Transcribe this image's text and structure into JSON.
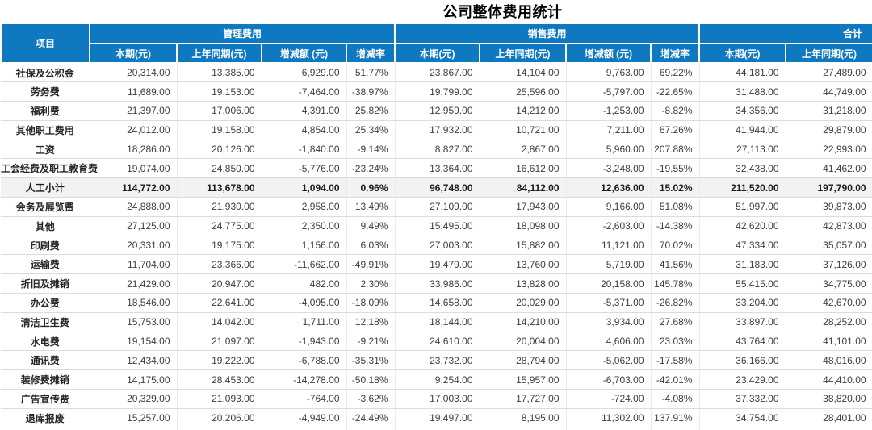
{
  "chart_data": {
    "type": "table",
    "title": "公司整体费用统计",
    "item_header": "项目",
    "groups": [
      {
        "label": "管理费用",
        "cols": [
          "本期(元)",
          "上年同期(元)",
          "增减额 (元)",
          "增减率"
        ]
      },
      {
        "label": "销售费用",
        "cols": [
          "本期(元)",
          "上年同期(元)",
          "增减额 (元)",
          "增减率"
        ]
      },
      {
        "label": "合计",
        "cols": [
          "本期(元)",
          "上年同期(元)"
        ]
      }
    ],
    "rows": [
      {
        "item": "社保及公积金",
        "subtotal": false,
        "values": [
          "20,314.00",
          "13,385.00",
          "6,929.00",
          "51.77%",
          "23,867.00",
          "14,104.00",
          "9,763.00",
          "69.22%",
          "44,181.00",
          "27,489.00"
        ]
      },
      {
        "item": "劳务费",
        "subtotal": false,
        "values": [
          "11,689.00",
          "19,153.00",
          "-7,464.00",
          "-38.97%",
          "19,799.00",
          "25,596.00",
          "-5,797.00",
          "-22.65%",
          "31,488.00",
          "44,749.00"
        ]
      },
      {
        "item": "福利费",
        "subtotal": false,
        "values": [
          "21,397.00",
          "17,006.00",
          "4,391.00",
          "25.82%",
          "12,959.00",
          "14,212.00",
          "-1,253.00",
          "-8.82%",
          "34,356.00",
          "31,218.00"
        ]
      },
      {
        "item": "其他职工费用",
        "subtotal": false,
        "values": [
          "24,012.00",
          "19,158.00",
          "4,854.00",
          "25.34%",
          "17,932.00",
          "10,721.00",
          "7,211.00",
          "67.26%",
          "41,944.00",
          "29,879.00"
        ]
      },
      {
        "item": "工资",
        "subtotal": false,
        "values": [
          "18,286.00",
          "20,126.00",
          "-1,840.00",
          "-9.14%",
          "8,827.00",
          "2,867.00",
          "5,960.00",
          "207.88%",
          "27,113.00",
          "22,993.00"
        ]
      },
      {
        "item": "工会经费及职工教育费",
        "subtotal": false,
        "values": [
          "19,074.00",
          "24,850.00",
          "-5,776.00",
          "-23.24%",
          "13,364.00",
          "16,612.00",
          "-3,248.00",
          "-19.55%",
          "32,438.00",
          "41,462.00"
        ]
      },
      {
        "item": "人工小计",
        "subtotal": true,
        "values": [
          "114,772.00",
          "113,678.00",
          "1,094.00",
          "0.96%",
          "96,748.00",
          "84,112.00",
          "12,636.00",
          "15.02%",
          "211,520.00",
          "197,790.00"
        ]
      },
      {
        "item": "会务及展览费",
        "subtotal": false,
        "values": [
          "24,888.00",
          "21,930.00",
          "2,958.00",
          "13.49%",
          "27,109.00",
          "17,943.00",
          "9,166.00",
          "51.08%",
          "51,997.00",
          "39,873.00"
        ]
      },
      {
        "item": "其他",
        "subtotal": false,
        "values": [
          "27,125.00",
          "24,775.00",
          "2,350.00",
          "9.49%",
          "15,495.00",
          "18,098.00",
          "-2,603.00",
          "-14.38%",
          "42,620.00",
          "42,873.00"
        ]
      },
      {
        "item": "印刷费",
        "subtotal": false,
        "values": [
          "20,331.00",
          "19,175.00",
          "1,156.00",
          "6.03%",
          "27,003.00",
          "15,882.00",
          "11,121.00",
          "70.02%",
          "47,334.00",
          "35,057.00"
        ]
      },
      {
        "item": "运输费",
        "subtotal": false,
        "values": [
          "11,704.00",
          "23,366.00",
          "-11,662.00",
          "-49.91%",
          "19,479.00",
          "13,760.00",
          "5,719.00",
          "41.56%",
          "31,183.00",
          "37,126.00"
        ]
      },
      {
        "item": "折旧及摊销",
        "subtotal": false,
        "values": [
          "21,429.00",
          "20,947.00",
          "482.00",
          "2.30%",
          "33,986.00",
          "13,828.00",
          "20,158.00",
          "145.78%",
          "55,415.00",
          "34,775.00"
        ]
      },
      {
        "item": "办公费",
        "subtotal": false,
        "values": [
          "18,546.00",
          "22,641.00",
          "-4,095.00",
          "-18.09%",
          "14,658.00",
          "20,029.00",
          "-5,371.00",
          "-26.82%",
          "33,204.00",
          "42,670.00"
        ]
      },
      {
        "item": "清洁卫生费",
        "subtotal": false,
        "values": [
          "15,753.00",
          "14,042.00",
          "1,711.00",
          "12.18%",
          "18,144.00",
          "14,210.00",
          "3,934.00",
          "27.68%",
          "33,897.00",
          "28,252.00"
        ]
      },
      {
        "item": "水电费",
        "subtotal": false,
        "values": [
          "19,154.00",
          "21,097.00",
          "-1,943.00",
          "-9.21%",
          "24,610.00",
          "20,004.00",
          "4,606.00",
          "23.03%",
          "43,764.00",
          "41,101.00"
        ]
      },
      {
        "item": "通讯费",
        "subtotal": false,
        "values": [
          "12,434.00",
          "19,222.00",
          "-6,788.00",
          "-35.31%",
          "23,732.00",
          "28,794.00",
          "-5,062.00",
          "-17.58%",
          "36,166.00",
          "48,016.00"
        ]
      },
      {
        "item": "装修费摊销",
        "subtotal": false,
        "values": [
          "14,175.00",
          "28,453.00",
          "-14,278.00",
          "-50.18%",
          "9,254.00",
          "15,957.00",
          "-6,703.00",
          "-42.01%",
          "23,429.00",
          "44,410.00"
        ]
      },
      {
        "item": "广告宣传费",
        "subtotal": false,
        "values": [
          "20,329.00",
          "21,093.00",
          "-764.00",
          "-3.62%",
          "17,003.00",
          "17,727.00",
          "-724.00",
          "-4.08%",
          "37,332.00",
          "38,820.00"
        ]
      },
      {
        "item": "退库报废",
        "subtotal": false,
        "values": [
          "15,257.00",
          "20,206.00",
          "-4,949.00",
          "-24.49%",
          "19,497.00",
          "8,195.00",
          "11,302.00",
          "137.91%",
          "34,754.00",
          "28,401.00"
        ]
      }
    ],
    "layout_hints": {
      "grid": true,
      "header_rows": 2,
      "subtotal_row_index": 6,
      "right_edge_clipped": true
    }
  },
  "colors": {
    "header_bg": "#0e79c0",
    "header_text": "#ffffff",
    "subtotal_bg": "#f2f2f2",
    "row_border": "#dcdcdc",
    "number_text": "#3d3d3d",
    "title_text": "#000000"
  }
}
